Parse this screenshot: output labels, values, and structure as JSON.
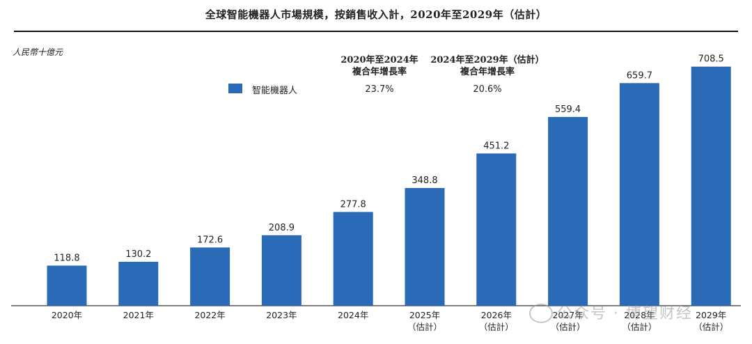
{
  "title": "全球智能機器人市場規模，按銷售收入計，2020年至2029年（估計）",
  "unit_label": "人民幣十億元",
  "legend": {
    "label": "智能機器人",
    "color": "#2a6ab6"
  },
  "cagr": [
    {
      "header_line1": "2020年至2024年",
      "header_line2": "複合年增長率",
      "value": "23.7%"
    },
    {
      "header_line1": "2024年至2029年（估計）",
      "header_line2": "複合年增長率",
      "value": "20.6%"
    }
  ],
  "watermark": "公众号 · 博望财经",
  "chart_data": {
    "type": "bar",
    "title": "全球智能機器人市場規模，按銷售收入計，2020年至2029年（估計）",
    "ylabel": "人民幣十億元",
    "categories": [
      "2020年",
      "2021年",
      "2022年",
      "2023年",
      "2024年",
      "2025年",
      "2026年",
      "2027年",
      "2028年",
      "2029年"
    ],
    "category_notes": [
      "",
      "",
      "",
      "",
      "",
      "（估計）",
      "（估計）",
      "（估計）",
      "（估計）",
      "（估計）"
    ],
    "series": [
      {
        "name": "智能機器人",
        "values": [
          118.8,
          130.2,
          172.6,
          208.9,
          277.8,
          348.8,
          451.2,
          559.4,
          659.7,
          708.5
        ]
      }
    ],
    "value_labels": [
      "118.8",
      "130.2",
      "172.6",
      "208.9",
      "277.8",
      "348.8",
      "451.2",
      "559.4",
      "659.7",
      "708.5"
    ],
    "ylim": [
      0,
      745
    ],
    "grid": false,
    "legend_position": "top-left",
    "bar_color": "#2a6ab6"
  }
}
